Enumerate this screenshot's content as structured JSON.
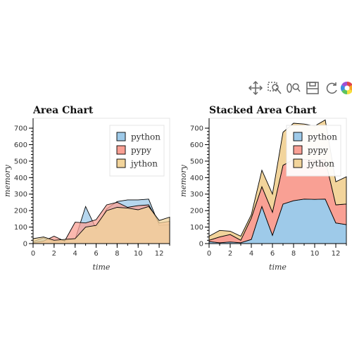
{
  "toolbar": {
    "tools": [
      {
        "icon": "pan-icon",
        "active": true
      },
      {
        "icon": "box-zoom-icon"
      },
      {
        "icon": "wheel-zoom-icon"
      },
      {
        "icon": "save-icon"
      },
      {
        "icon": "reset-icon"
      },
      {
        "icon": "bokeh-logo-icon"
      }
    ]
  },
  "colors": {
    "python": "#9ecae9",
    "pypy": "#f9a094",
    "jython": "#f2d49b",
    "toolbar_active": "#26aae1"
  },
  "chart_data": [
    {
      "type": "area",
      "title": "Area Chart",
      "xlabel": "time",
      "ylabel": "memory",
      "x": [
        0,
        1,
        2,
        3,
        4,
        5,
        6,
        7,
        8,
        9,
        10,
        11,
        12,
        13
      ],
      "xlim": [
        0,
        13
      ],
      "ylim": [
        0,
        760
      ],
      "xticks": [
        0,
        2,
        4,
        6,
        8,
        10,
        12
      ],
      "yticks": [
        0,
        100,
        200,
        300,
        400,
        500,
        600,
        700
      ],
      "stacked": false,
      "grid": false,
      "legend_position": "top-right",
      "series": [
        {
          "name": "python",
          "values": [
            12,
            35,
            10,
            20,
            25,
            225,
            90,
            210,
            255,
            265,
            265,
            270,
            110,
            115
          ]
        },
        {
          "name": "pypy",
          "values": [
            5,
            15,
            45,
            15,
            130,
            125,
            145,
            235,
            250,
            220,
            230,
            235,
            125,
            135
          ]
        },
        {
          "name": "jython",
          "values": [
            30,
            40,
            20,
            25,
            30,
            100,
            110,
            200,
            220,
            215,
            205,
            225,
            140,
            160
          ]
        }
      ]
    },
    {
      "type": "area",
      "title": "Stacked Area Chart",
      "xlabel": "time",
      "ylabel": "memory",
      "x": [
        0,
        1,
        2,
        3,
        4,
        5,
        6,
        7,
        8,
        9,
        10,
        11,
        12,
        13
      ],
      "xlim": [
        0,
        13
      ],
      "ylim": [
        0,
        760
      ],
      "xticks": [
        0,
        2,
        4,
        6,
        8,
        10,
        12
      ],
      "yticks": [
        0,
        100,
        200,
        300,
        400,
        500,
        600,
        700
      ],
      "stacked": true,
      "grid": false,
      "legend_position": "top-right",
      "series": [
        {
          "name": "python",
          "values": [
            12,
            5,
            10,
            5,
            25,
            225,
            50,
            240,
            260,
            270,
            268,
            270,
            125,
            115
          ]
        },
        {
          "name": "pypy",
          "values": [
            8,
            35,
            45,
            15,
            130,
            120,
            140,
            235,
            250,
            240,
            240,
            240,
            110,
            125
          ]
        },
        {
          "name": "jython",
          "values": [
            25,
            40,
            20,
            25,
            20,
            100,
            110,
            200,
            220,
            215,
            205,
            240,
            140,
            165
          ]
        }
      ]
    }
  ]
}
